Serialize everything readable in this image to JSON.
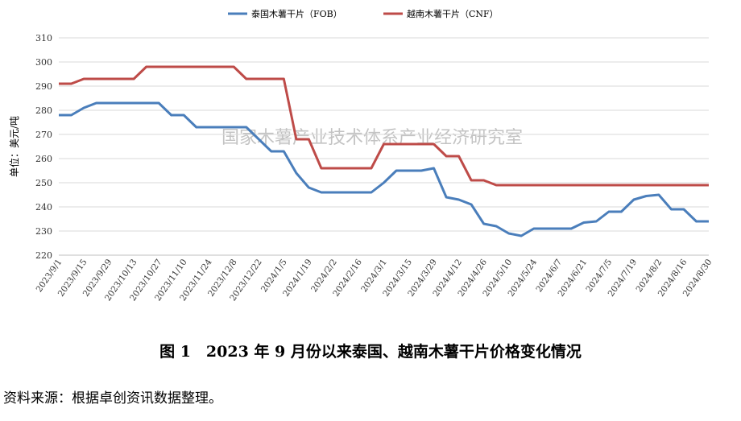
{
  "chart_data": {
    "type": "line",
    "y_label": "单位：美元/吨",
    "categories": [
      "2023/9/1",
      null,
      "2023/9/15",
      null,
      "2023/9/29",
      null,
      "2023/10/13",
      null,
      "2023/10/27",
      null,
      "2023/11/10",
      null,
      "2023/11/24",
      null,
      "2023/12/8",
      null,
      "2023/12/22",
      null,
      "2024/1/5",
      null,
      "2024/1/19",
      null,
      "2024/2/2",
      null,
      "2024/2/16",
      null,
      "2024/3/1",
      null,
      "2024/3/15",
      null,
      "2024/3/29",
      null,
      "2024/4/12",
      null,
      "2024/4/26",
      null,
      "2024/5/10",
      null,
      "2024/5/24",
      null,
      "2024/6/7",
      null,
      "2024/6/21",
      null,
      "2024/7/5",
      null,
      "2024/7/19",
      null,
      "2024/8/2",
      null,
      "2024/8/16",
      null,
      "2024/8/30"
    ],
    "series": [
      {
        "name": "泰国木薯干片（FOB）",
        "color": "#4a7ebb",
        "values": [
          278,
          278,
          281,
          283,
          283,
          283,
          283,
          283,
          283,
          278,
          278,
          273,
          273,
          273,
          273,
          273,
          268,
          263,
          263,
          254,
          248,
          246,
          246,
          246,
          246,
          246,
          250,
          255,
          255,
          255,
          256,
          244,
          243,
          241,
          233,
          232,
          229,
          228,
          231,
          231,
          231,
          231,
          233.5,
          234,
          238,
          238,
          243,
          244.5,
          245,
          239,
          239,
          234,
          234
        ]
      },
      {
        "name": "越南木薯干片（CNF）",
        "color": "#be4b48",
        "values": [
          291,
          291,
          293,
          293,
          293,
          293,
          293,
          298,
          298,
          298,
          298,
          298,
          298,
          298,
          298,
          293,
          293,
          293,
          293,
          268,
          268,
          256,
          256,
          256,
          256,
          256,
          266,
          266,
          266,
          266,
          266,
          261,
          261,
          251,
          251,
          249,
          249,
          249,
          249,
          249,
          249,
          249,
          249,
          249,
          249,
          249,
          249,
          249,
          249,
          249,
          249,
          249,
          249
        ]
      }
    ],
    "ylim": [
      220,
      310
    ],
    "yticks": [
      220,
      230,
      240,
      250,
      260,
      270,
      280,
      290,
      300,
      310
    ],
    "grid": true
  },
  "watermark": "国家木薯产业技术体系产业经济研究室",
  "caption": "图 1　2023 年 9 月份以来泰国、越南木薯干片价格变化情况",
  "source": "资料来源：根据卓创资讯数据整理。"
}
